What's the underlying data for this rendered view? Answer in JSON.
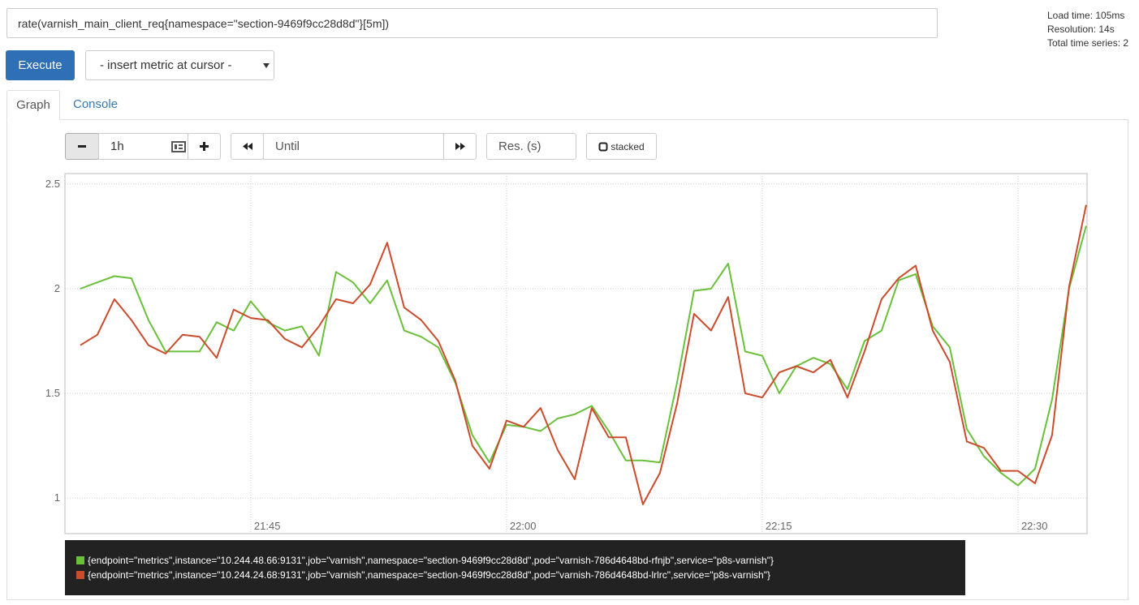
{
  "query": "rate(varnish_main_client_req{namespace=\"section-9469f9cc28d8d\"}[5m])",
  "stats": {
    "load_time": "Load time: 105ms",
    "resolution": "Resolution: 14s",
    "total_series": "Total time series: 2"
  },
  "buttons": {
    "execute": "Execute",
    "insert_metric": "- insert metric at cursor -"
  },
  "tabs": [
    "Graph",
    "Console"
  ],
  "controls": {
    "range": "1h",
    "until": "Until",
    "resolution": "Res. (s)",
    "stacked": "stacked"
  },
  "chart_data": {
    "type": "line",
    "x": [
      1295,
      1296,
      1297,
      1298,
      1299,
      1300,
      1301,
      1302,
      1303,
      1304,
      1305,
      1306,
      1307,
      1308,
      1309,
      1310,
      1311,
      1312,
      1313,
      1314,
      1315,
      1316,
      1317,
      1318,
      1319,
      1320,
      1321,
      1322,
      1323,
      1324,
      1325,
      1326,
      1327,
      1328,
      1329,
      1330,
      1331,
      1332,
      1333,
      1334,
      1335,
      1336,
      1337,
      1338,
      1339,
      1340,
      1341,
      1342,
      1343,
      1344,
      1345,
      1346,
      1347,
      1348,
      1349,
      1350,
      1351,
      1352,
      1353,
      1354
    ],
    "xlim": [
      1294.1,
      1354.05
    ],
    "xticks": [
      {
        "value": 1305,
        "label": "21:45"
      },
      {
        "value": 1320,
        "label": "22:00"
      },
      {
        "value": 1335,
        "label": "22:15"
      },
      {
        "value": 1350,
        "label": "22:30"
      }
    ],
    "ylim": [
      0.83,
      2.55
    ],
    "yticks": [
      1,
      1.5,
      2,
      2.5
    ],
    "grid": true,
    "series": [
      {
        "name": "{endpoint=\"metrics\",instance=\"10.244.48.66:9131\",job=\"varnish\",namespace=\"section-9469f9cc28d8d\",pod=\"varnish-786d4648bd-rfnjb\",service=\"p8s-varnish\"}",
        "color": "#6abf3b",
        "values": [
          2.0,
          2.03,
          2.06,
          2.05,
          1.85,
          1.7,
          1.7,
          1.7,
          1.84,
          1.8,
          1.94,
          1.84,
          1.8,
          1.82,
          1.68,
          2.08,
          2.03,
          1.93,
          2.04,
          1.8,
          1.77,
          1.72,
          1.55,
          1.3,
          1.17,
          1.35,
          1.34,
          1.32,
          1.38,
          1.4,
          1.44,
          1.32,
          1.18,
          1.18,
          1.17,
          1.55,
          1.99,
          2.0,
          2.12,
          1.7,
          1.68,
          1.5,
          1.63,
          1.67,
          1.64,
          1.52,
          1.75,
          1.8,
          2.04,
          2.07,
          1.82,
          1.72,
          1.33,
          1.2,
          1.12,
          1.06,
          1.14,
          1.47,
          2.0,
          2.3
        ]
      },
      {
        "name": "{endpoint=\"metrics\",instance=\"10.244.24.68:9131\",job=\"varnish\",namespace=\"section-9469f9cc28d8d\",pod=\"varnish-786d4648bd-lrlrc\",service=\"p8s-varnish\"}",
        "color": "#cb4b2d",
        "values": [
          1.73,
          1.78,
          1.95,
          1.85,
          1.73,
          1.69,
          1.78,
          1.77,
          1.67,
          1.9,
          1.86,
          1.85,
          1.76,
          1.72,
          1.82,
          1.95,
          1.93,
          2.02,
          2.22,
          1.91,
          1.85,
          1.75,
          1.56,
          1.25,
          1.14,
          1.37,
          1.34,
          1.43,
          1.23,
          1.09,
          1.43,
          1.29,
          1.29,
          0.97,
          1.12,
          1.45,
          1.88,
          1.8,
          1.96,
          1.5,
          1.48,
          1.6,
          1.63,
          1.6,
          1.66,
          1.48,
          1.7,
          1.95,
          2.05,
          2.11,
          1.8,
          1.65,
          1.27,
          1.24,
          1.13,
          1.13,
          1.07,
          1.3,
          2.01,
          2.4
        ]
      }
    ]
  }
}
